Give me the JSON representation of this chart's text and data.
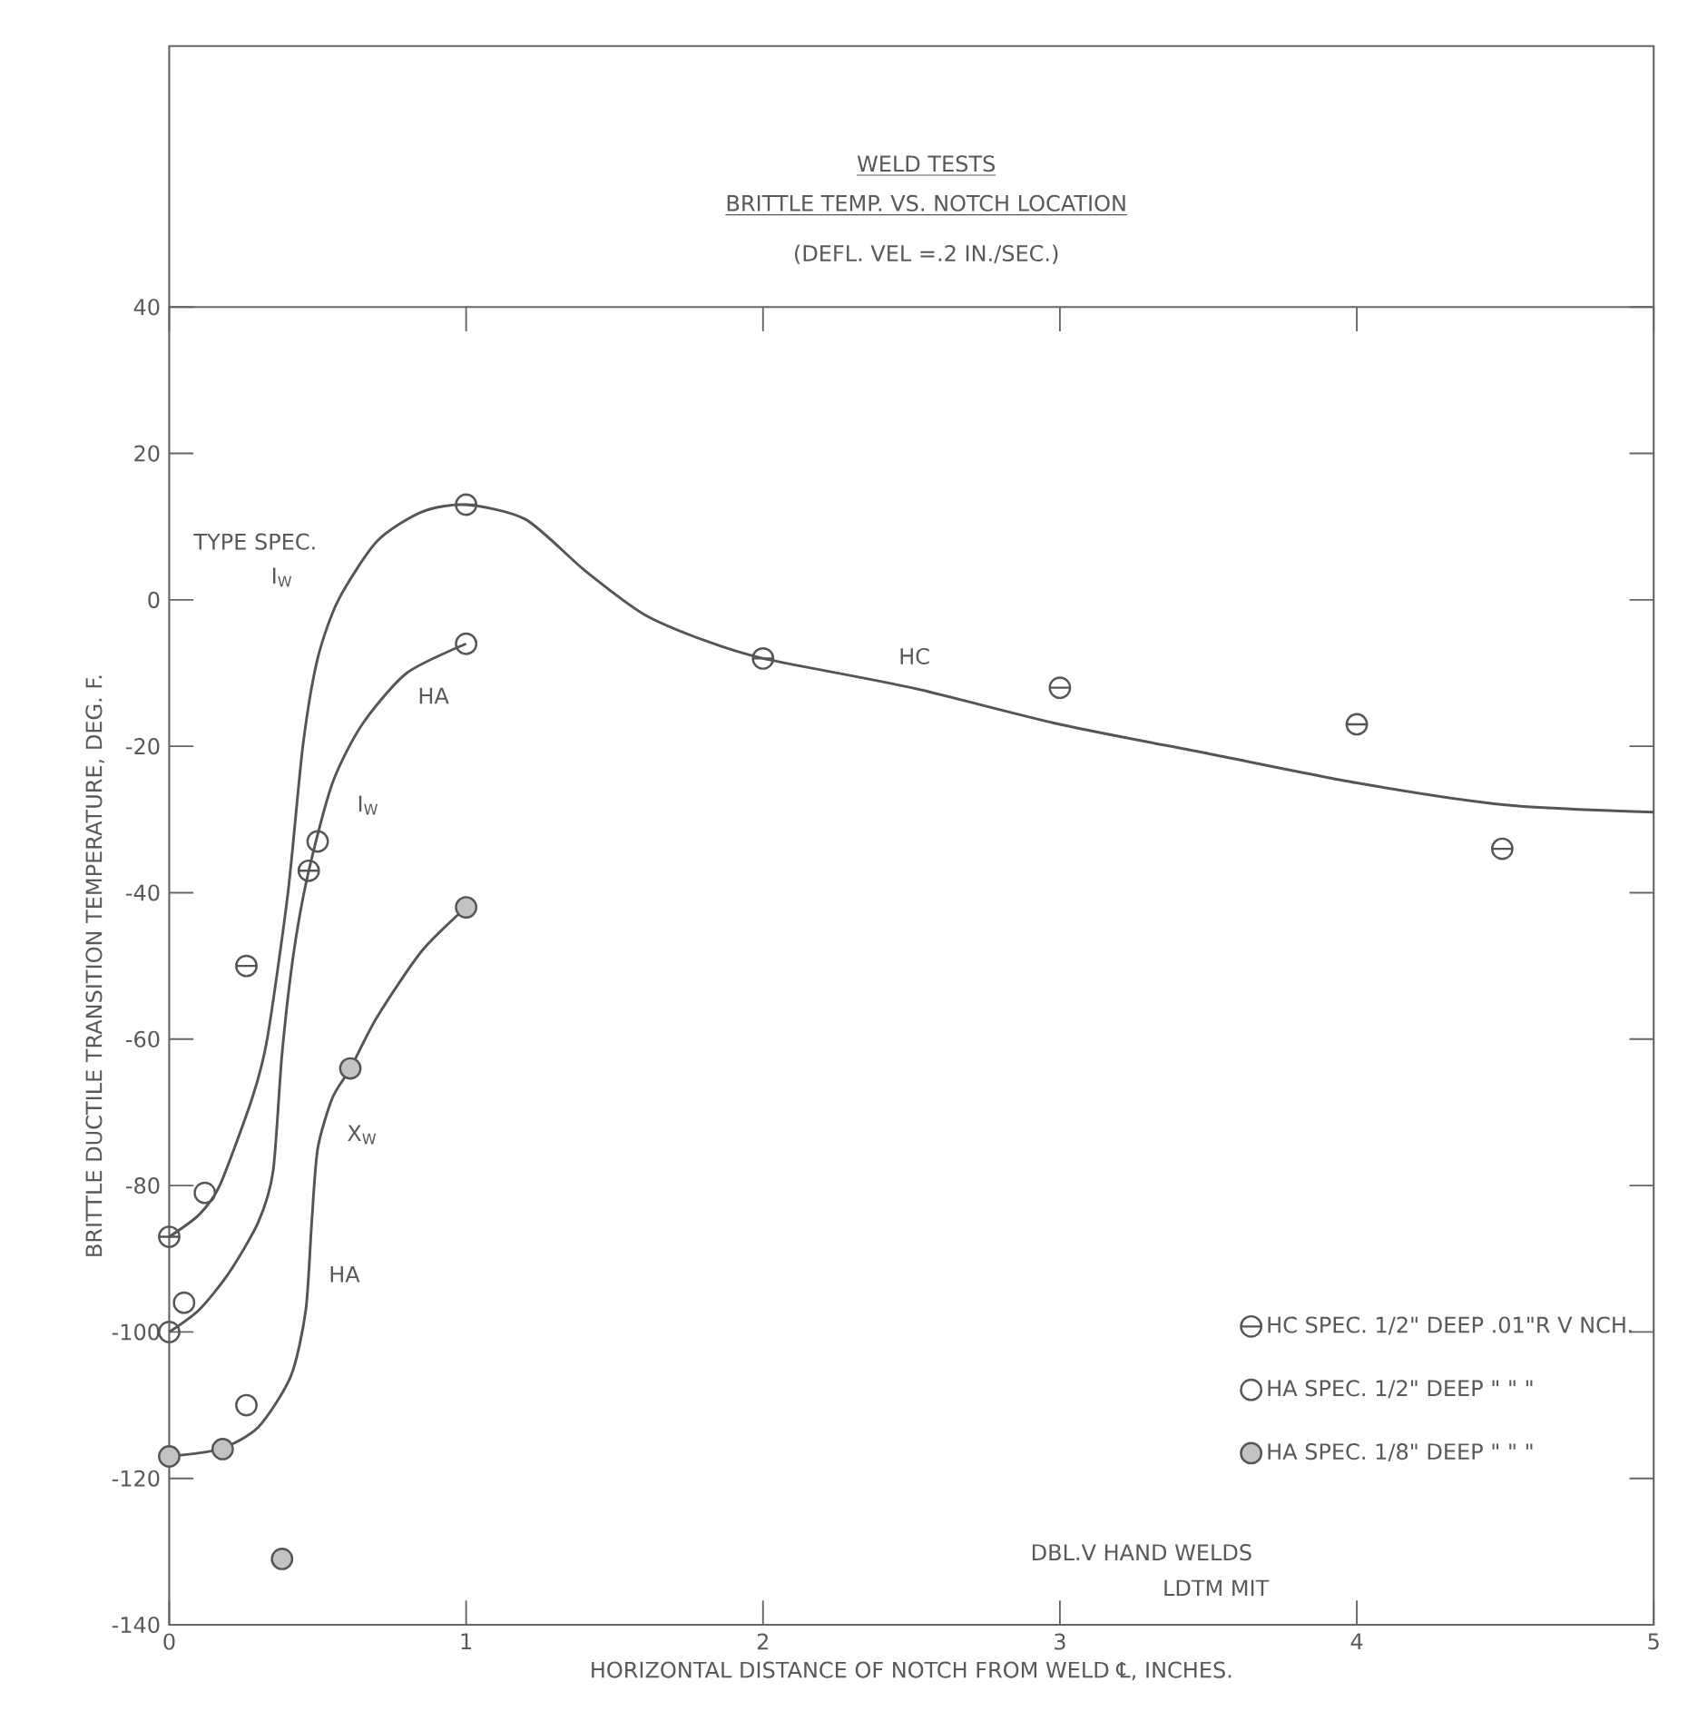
{
  "chart_data": {
    "type": "scatter",
    "title": "WELD TESTS",
    "subtitle": "BRITTLE TEMP. VS. NOTCH LOCATION",
    "xlabel": "HORIZONTAL DISTANCE OF NOTCH FROM WELD ℄, INCHES.",
    "ylabel": "BRITTLE DUCTILE TRANSITION TEMPERATURE, DEG. F.",
    "xlim": [
      0,
      5
    ],
    "xticks": [
      0,
      1,
      2,
      3,
      4,
      5
    ],
    "ylim": [
      -140,
      40
    ],
    "yticks": [
      -140,
      -120,
      -100,
      -80,
      -60,
      -40,
      -20,
      0,
      20,
      40
    ],
    "grid": false,
    "legend": "bottom right",
    "marker": "circle",
    "tick_labels": "xy",
    "series": [
      {
        "name": "HC SPEC. 1/2\" DEEP .01\"R V NCH.",
        "color": "#555555",
        "x": [
          0,
          0.26,
          0.47,
          1,
          2,
          3,
          4,
          4.49
        ],
        "values": [
          -87,
          -50,
          -37,
          13,
          -8,
          -12,
          -17,
          -34
        ]
      },
      {
        "name": "HA SPEC. 1/2\" DEEP \" \" \"",
        "color": "#555555",
        "x": [
          0,
          0.05,
          0.12,
          0.26,
          0.5,
          1
        ],
        "values": [
          -100,
          -96,
          -81,
          -110,
          -33,
          -6
        ]
      },
      {
        "name": "HA SPEC. 1/8\" DEEP \" \" \"",
        "color": "#555555",
        "x": [
          0,
          0.18,
          0.38,
          0.61,
          1
        ],
        "values": [
          -117,
          -116,
          -131,
          -64,
          -42
        ]
      },
      {
        "type": "line",
        "marker": "none",
        "line_style": "solid",
        "color": "#555555",
        "x": [
          0,
          0.1,
          0.17,
          0.28,
          0.33,
          0.4,
          0.45,
          0.5,
          0.57,
          0.7,
          0.85,
          1,
          1.2,
          1.4,
          1.6,
          1.8,
          2,
          2.5,
          3,
          3.5,
          4,
          4.5,
          5
        ],
        "values": [
          -87,
          -84,
          -80,
          -68,
          -60,
          -40,
          -20,
          -8,
          0,
          8,
          12,
          13,
          11,
          4,
          -2,
          -5.5,
          -8,
          -12,
          -17,
          -21,
          -25,
          -28,
          -29
        ]
      },
      {
        "type": "line",
        "marker": "none",
        "line_style": "solid",
        "color": "#555555",
        "x": [
          0,
          0.1,
          0.2,
          0.3,
          0.35,
          0.38,
          0.42,
          0.47,
          0.55,
          0.65,
          0.8,
          1
        ],
        "values": [
          -100,
          -97,
          -92,
          -85,
          -78,
          -62,
          -48,
          -37,
          -25,
          -17,
          -10,
          -6
        ]
      },
      {
        "type": "line",
        "marker": "none",
        "line_style": "solid",
        "color": "#555555",
        "x": [
          0,
          0.17,
          0.3,
          0.41,
          0.46,
          0.48,
          0.5,
          0.55,
          0.61,
          0.7,
          0.85,
          1
        ],
        "values": [
          -117,
          -116,
          -113,
          -106,
          -97,
          -85,
          -75,
          -68,
          -64,
          -57,
          -48,
          -42
        ]
      }
    ],
    "annotations": [
      "(DEFL. VEL =.2 IN./SEC.)",
      "DBL.V HAND WELDS",
      "LDTM MIT",
      "TYPE SPEC.",
      "I$_{W}$",
      "HA",
      "I$_{W}$",
      "X$_{W}$",
      "HA",
      "HC"
    ]
  }
}
